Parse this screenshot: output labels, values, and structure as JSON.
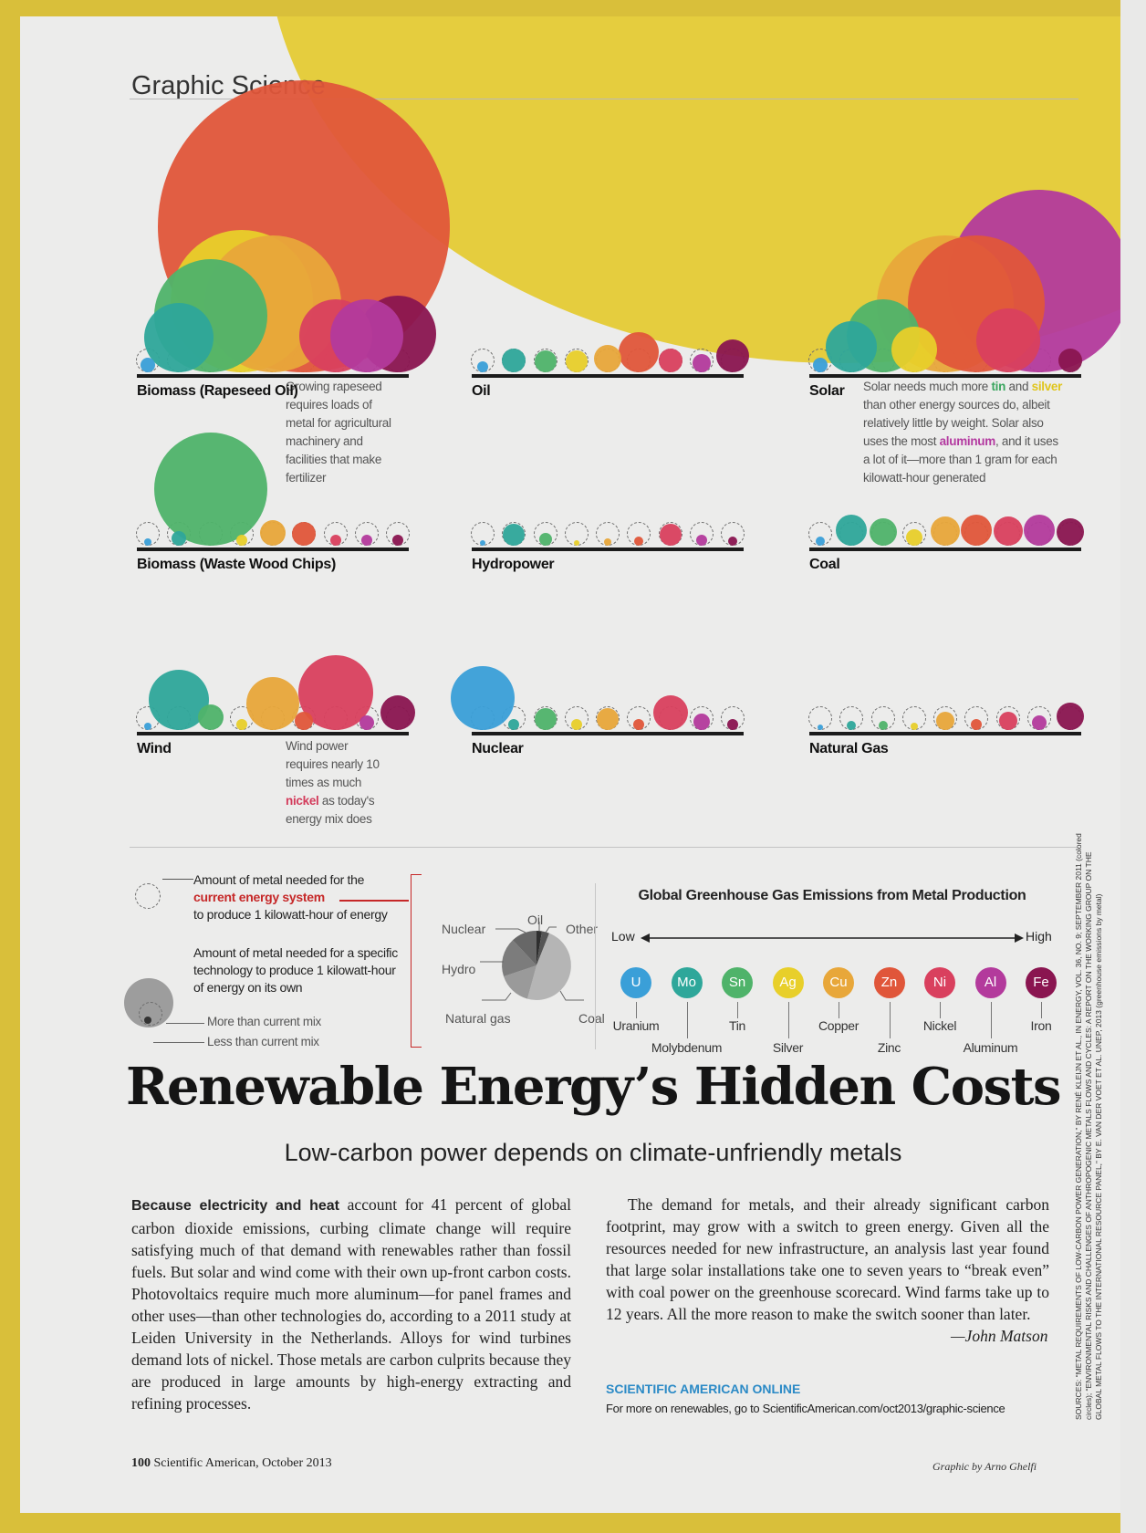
{
  "header": {
    "section": "Graphic Science"
  },
  "panels": [
    {
      "label": "Biomass (Rapeseed Oil)",
      "note": [
        "Growing rapeseed",
        "requires loads of",
        "metal for agricultural",
        "machinery and",
        "facilities that make",
        "fertilizer"
      ]
    },
    {
      "label": "Oil"
    },
    {
      "label": "Solar",
      "note_parts": [
        {
          "t": "Solar needs much more "
        },
        {
          "t": "tin",
          "c": "#3aa55e",
          "b": true
        },
        {
          "t": " and "
        },
        {
          "t": "silver",
          "c": "#e0c51c",
          "b": true
        },
        {
          "t": " than other energy sources do, albeit relatively little by weight. Solar also uses the most "
        },
        {
          "t": "aluminum",
          "c": "#b33aa0",
          "b": true
        },
        {
          "t": ", and it uses a lot of it—more than 1 gram for each kilowatt-hour generated"
        }
      ]
    },
    {
      "label": "Biomass (Waste Wood Chips)"
    },
    {
      "label": "Hydropower"
    },
    {
      "label": "Coal"
    },
    {
      "label": "Wind",
      "note_parts": [
        {
          "t": "Wind power requires nearly 10 times as much "
        },
        {
          "t": "nickel",
          "c": "#d33b5b",
          "b": true
        },
        {
          "t": " as today's energy mix does"
        }
      ]
    },
    {
      "label": "Nuclear"
    },
    {
      "label": "Natural Gas"
    }
  ],
  "legend": {
    "line1": "Amount of metal needed for the",
    "line2": "current energy system",
    "line3": "to produce 1 kilowatt-hour of energy",
    "line4": "Amount of metal needed for a specific",
    "line5": "technology to produce 1 kilowatt-hour",
    "line6": "of energy on its own",
    "more": "More than current mix",
    "less": "Less than current mix",
    "pie": {
      "nuclear": "Nuclear",
      "oil": "Oil",
      "other": "Other",
      "hydro": "Hydro",
      "natural_gas": "Natural gas",
      "coal": "Coal"
    }
  },
  "emissions": {
    "title": "Global Greenhouse Gas Emissions from Metal Production",
    "low": "Low",
    "high": "High",
    "metals": [
      {
        "sym": "U",
        "name": "Uranium",
        "color": "#3a9fd8"
      },
      {
        "sym": "Mo",
        "name": "Molybdenum",
        "color": "#2ea79a"
      },
      {
        "sym": "Sn",
        "name": "Tin",
        "color": "#4fb36a"
      },
      {
        "sym": "Ag",
        "name": "Silver",
        "color": "#e8cf2a"
      },
      {
        "sym": "Cu",
        "name": "Copper",
        "color": "#e8a73a"
      },
      {
        "sym": "Zn",
        "name": "Zinc",
        "color": "#e0563a"
      },
      {
        "sym": "Ni",
        "name": "Nickel",
        "color": "#d9405e"
      },
      {
        "sym": "Al",
        "name": "Aluminum",
        "color": "#b33a9c"
      },
      {
        "sym": "Fe",
        "name": "Iron",
        "color": "#8a1550"
      }
    ]
  },
  "article": {
    "title": "Renewable Energy’s Hidden Costs",
    "subtitle": "Low-carbon power depends on climate-unfriendly metals",
    "lead": "Because electricity and heat",
    "p1": " account for 41 percent of global carbon dioxide emissions, curbing climate change will require satisfying much of that demand with renewables rather than fossil fuels. But solar and wind come with their own up-front carbon costs. Photovoltaics require much more aluminum—for panel frames and other uses—than other technologies do, according to a 2011 study at Leiden University in the Netherlands. Alloys for wind turbines demand lots of nickel. Those metals are carbon culprits because they are produced in large amounts by high-energy extracting and refining processes.",
    "p2": "The demand for metals, and their already significant carbon footprint, may grow with a switch to green energy. Given all the resources needed for new infrastructure, an analysis last year found that large solar installations take one to seven years to “break even” with coal power on the greenhouse scorecard. Wind farms take up to 12 years. All the more reason to make the switch sooner than later.",
    "author": "—John Matson",
    "online_head": "SCIENTIFIC AMERICAN ONLINE",
    "online_text": "For more on renewables, go to ScientificAmerican.com/oct2013/graphic-science"
  },
  "footer": {
    "page": "100",
    "magazine": "Scientific American, October 2013",
    "credit": "Graphic by Arno Ghelfi",
    "sources": "SOURCES: “METAL REQUIREMENTS OF LOW-CARBON POWER GENERATION,” BY RENÉ KLEIJN ET AL., IN ENERGY, VOL. 36, NO. 9; SEPTEMBER 2011 (colored circles); “ENVIRONMENTAL RISKS AND CHALLENGES OF ANTHROPOGENIC METALS FLOWS AND CYCLES: A REPORT ON THE WORKING GROUP ON THE GLOBAL METAL FLOWS TO THE INTERNATIONAL RESOURCE PANEL,” BY E. VAN DER VOET ET AL. UNEP, 2013 (greenhouse emissions by metal)"
  }
}
